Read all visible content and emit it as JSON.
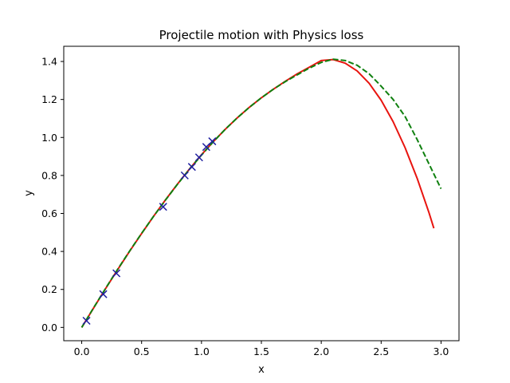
{
  "chart_data": {
    "type": "line",
    "title": "Projectile motion with Physics loss",
    "xlabel": "x",
    "ylabel": "y",
    "xlim": [
      -0.15,
      3.15
    ],
    "ylim": [
      -0.07,
      1.48
    ],
    "xticks": [
      "0.0",
      "0.5",
      "1.0",
      "1.5",
      "2.0",
      "2.5",
      "3.0"
    ],
    "yticks": [
      "0.0",
      "0.2",
      "0.4",
      "0.6",
      "0.8",
      "1.0",
      "1.2",
      "1.4"
    ],
    "grid": false,
    "series": [
      {
        "style": "solid",
        "color": "#e8140f",
        "x": [
          0.0,
          0.1,
          0.2,
          0.3,
          0.4,
          0.5,
          0.6,
          0.7,
          0.8,
          0.9,
          1.0,
          1.1,
          1.2,
          1.3,
          1.4,
          1.5,
          1.6,
          1.7,
          1.8,
          1.9,
          2.0,
          2.1,
          2.2,
          2.3,
          2.4,
          2.5,
          2.6,
          2.7,
          2.8,
          2.9,
          2.94
        ],
        "y": [
          0.0,
          0.103,
          0.205,
          0.304,
          0.401,
          0.494,
          0.585,
          0.672,
          0.755,
          0.834,
          0.909,
          0.979,
          1.044,
          1.104,
          1.159,
          1.209,
          1.254,
          1.296,
          1.335,
          1.37,
          1.405,
          1.41,
          1.391,
          1.35,
          1.285,
          1.196,
          1.083,
          0.946,
          0.786,
          0.603,
          0.522
        ]
      },
      {
        "style": "dashed",
        "color": "#0f800f",
        "x": [
          0.0,
          0.1,
          0.2,
          0.3,
          0.4,
          0.5,
          0.6,
          0.7,
          0.8,
          0.9,
          1.0,
          1.1,
          1.2,
          1.3,
          1.4,
          1.5,
          1.6,
          1.7,
          1.8,
          1.9,
          2.0,
          2.1,
          2.2,
          2.3,
          2.4,
          2.5,
          2.6,
          2.7,
          2.8,
          2.9,
          3.0
        ],
        "y": [
          0.0,
          0.104,
          0.206,
          0.306,
          0.402,
          0.495,
          0.585,
          0.671,
          0.754,
          0.833,
          0.907,
          0.978,
          1.044,
          1.104,
          1.159,
          1.209,
          1.254,
          1.294,
          1.33,
          1.365,
          1.395,
          1.412,
          1.405,
          1.38,
          1.335,
          1.27,
          1.2,
          1.11,
          0.99,
          0.86,
          0.73
        ]
      }
    ],
    "markers": {
      "symbol": "x",
      "color": "#1f1fa0",
      "x": [
        0.04,
        0.18,
        0.29,
        0.68,
        0.86,
        0.92,
        0.98,
        1.04,
        1.09
      ],
      "y": [
        0.035,
        0.175,
        0.285,
        0.635,
        0.8,
        0.845,
        0.895,
        0.95,
        0.98
      ]
    }
  }
}
